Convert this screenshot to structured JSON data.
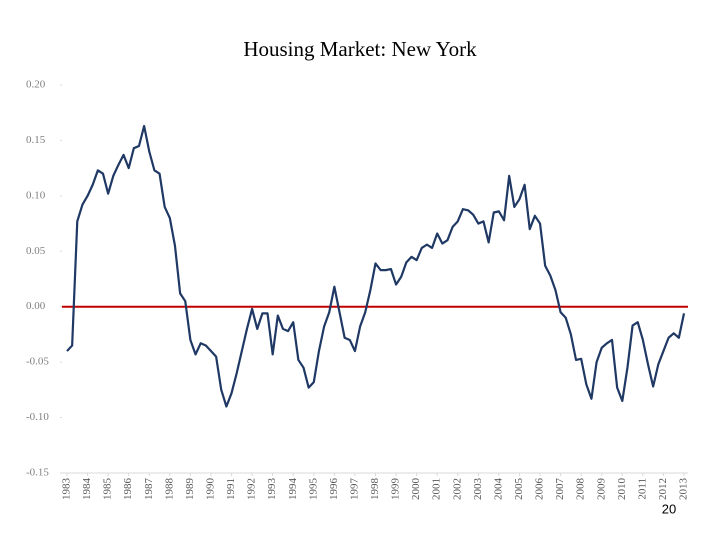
{
  "chart_data": {
    "type": "line",
    "title": "Housing Market:  New York",
    "categories": [
      "1983",
      null,
      null,
      null,
      "1984",
      null,
      null,
      null,
      "1985",
      null,
      null,
      null,
      "1986",
      null,
      null,
      null,
      "1987",
      null,
      null,
      null,
      "1988",
      null,
      null,
      null,
      "1989",
      null,
      null,
      null,
      "1990",
      null,
      null,
      null,
      "1991",
      null,
      null,
      null,
      "1992",
      null,
      null,
      null,
      "1993",
      null,
      null,
      null,
      "1994",
      null,
      null,
      null,
      "1995",
      null,
      null,
      null,
      "1996",
      null,
      null,
      null,
      "1997",
      null,
      null,
      null,
      "1998",
      null,
      null,
      null,
      "1999",
      null,
      null,
      null,
      "2000",
      null,
      null,
      null,
      "2001",
      null,
      null,
      null,
      "2002",
      null,
      null,
      null,
      "2003",
      null,
      null,
      null,
      "2004",
      null,
      null,
      null,
      "2005",
      null,
      null,
      null,
      "2006",
      null,
      null,
      null,
      "2007",
      null,
      null,
      null,
      "2008",
      null,
      null,
      null,
      "2009",
      null,
      null,
      null,
      "2010",
      null,
      null,
      null,
      "2011",
      null,
      null,
      null,
      "2012",
      null,
      null,
      null,
      "2013"
    ],
    "values": [
      -0.04,
      -0.035,
      0.077,
      0.092,
      0.1,
      0.11,
      0.123,
      0.12,
      0.102,
      0.118,
      0.128,
      0.137,
      0.125,
      0.143,
      0.145,
      0.163,
      0.14,
      0.123,
      0.12,
      0.09,
      0.08,
      0.055,
      0.012,
      0.005,
      -0.03,
      -0.043,
      -0.033,
      -0.035,
      -0.04,
      -0.045,
      -0.075,
      -0.09,
      -0.078,
      -0.06,
      -0.04,
      -0.02,
      -0.002,
      -0.02,
      -0.006,
      -0.006,
      -0.043,
      -0.008,
      -0.02,
      -0.022,
      -0.014,
      -0.048,
      -0.055,
      -0.073,
      -0.068,
      -0.04,
      -0.018,
      -0.005,
      0.018,
      -0.005,
      -0.028,
      -0.03,
      -0.04,
      -0.018,
      -0.005,
      0.015,
      0.039,
      0.033,
      0.033,
      0.034,
      0.02,
      0.027,
      0.04,
      0.045,
      0.042,
      0.053,
      0.056,
      0.053,
      0.066,
      0.057,
      0.06,
      0.072,
      0.077,
      0.088,
      0.087,
      0.083,
      0.075,
      0.077,
      0.058,
      0.085,
      0.086,
      0.078,
      0.118,
      0.09,
      0.097,
      0.11,
      0.07,
      0.082,
      0.075,
      0.037,
      0.028,
      0.015,
      -0.005,
      -0.01,
      -0.025,
      -0.048,
      -0.047,
      -0.07,
      -0.083,
      -0.05,
      -0.037,
      -0.033,
      -0.03,
      -0.073,
      -0.085,
      -0.055,
      -0.017,
      -0.014,
      -0.03,
      -0.052,
      -0.072,
      -0.052,
      -0.04,
      -0.028,
      -0.024,
      -0.028,
      -0.006
    ],
    "color": "#1f3864",
    "hline": 0,
    "hline_color": "#c00000",
    "ylim": [
      -0.15,
      0.2
    ],
    "yticks": [
      {
        "value": 0.2,
        "label": "0.20"
      },
      0.15,
      {
        "value": 0.1,
        "label": "0.10"
      },
      0.05,
      {
        "value": 0,
        "label": "0.00"
      },
      -0.05,
      {
        "value": -0.1,
        "label": "-0.10"
      },
      -0.15
    ],
    "grid": false
  },
  "page_number": "20"
}
